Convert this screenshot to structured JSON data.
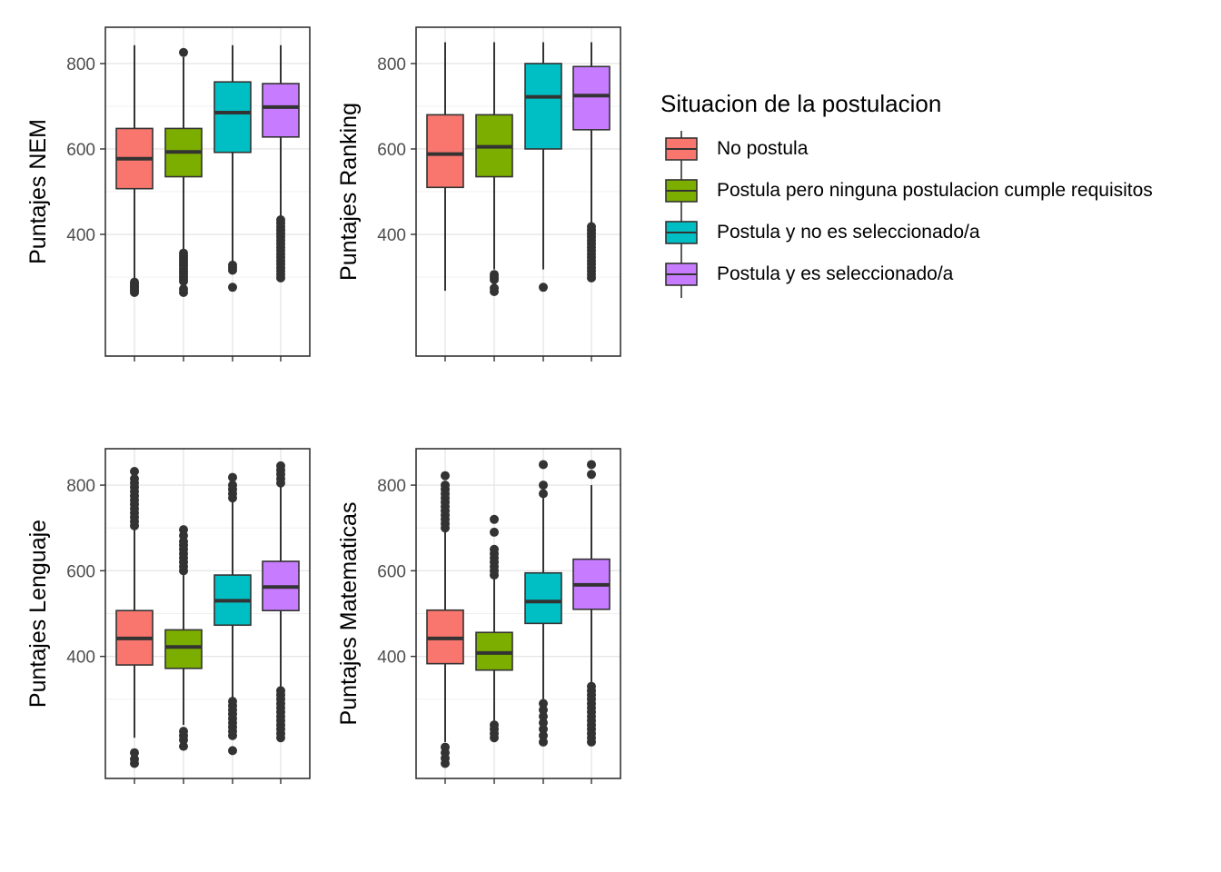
{
  "legend": {
    "title": "Situacion de la postulacion",
    "items": [
      {
        "label": "No postula",
        "color": "#F8766D"
      },
      {
        "label": "Postula pero ninguna postulacion cumple requisitos",
        "color": "#7CAE00"
      },
      {
        "label": "Postula y no es seleccionado/a",
        "color": "#00BFC4"
      },
      {
        "label": "Postula y es seleccionado/a",
        "color": "#C77CFF"
      }
    ]
  },
  "chart_data": [
    {
      "type": "boxplot",
      "ylabel": "Puntajes NEM",
      "yticks": [
        400,
        600,
        800
      ],
      "ylim": [
        115,
        885
      ],
      "categories": [
        "No postula",
        "Postula pero ninguna postulacion cumple requisitos",
        "Postula y no es seleccionado/a",
        "Postula y es seleccionado/a"
      ],
      "boxes": [
        {
          "whisker_low": 268,
          "q1": 507,
          "median": 577,
          "q3": 648,
          "whisker_high": 843,
          "outliers": [
            264,
            268,
            272,
            276,
            280,
            284,
            288
          ]
        },
        {
          "whisker_low": 358,
          "q1": 535,
          "median": 593,
          "q3": 648,
          "whisker_high": 815,
          "outliers": [
            264,
            272,
            290,
            296,
            302,
            308,
            314,
            320,
            326,
            332,
            338,
            344,
            350,
            356,
            826
          ]
        },
        {
          "whisker_low": 335,
          "q1": 592,
          "median": 685,
          "q3": 757,
          "whisker_high": 843,
          "outliers": [
            276,
            316,
            322,
            328
          ]
        },
        {
          "whisker_low": 440,
          "q1": 628,
          "median": 698,
          "q3": 753,
          "whisker_high": 843,
          "outliers": [
            298,
            306,
            314,
            322,
            330,
            338,
            346,
            354,
            362,
            370,
            378,
            386,
            394,
            402,
            410,
            418,
            426,
            434
          ]
        }
      ]
    },
    {
      "type": "boxplot",
      "ylabel": "Puntajes Ranking",
      "yticks": [
        400,
        600,
        800
      ],
      "ylim": [
        115,
        885
      ],
      "categories": [
        "No postula",
        "Postula pero ninguna postulacion cumple requisitos",
        "Postula y no es seleccionado/a",
        "Postula y es seleccionado/a"
      ],
      "boxes": [
        {
          "whisker_low": 268,
          "q1": 510,
          "median": 588,
          "q3": 680,
          "whisker_high": 850,
          "outliers": []
        },
        {
          "whisker_low": 318,
          "q1": 535,
          "median": 605,
          "q3": 680,
          "whisker_high": 850,
          "outliers": [
            266,
            274,
            294,
            300,
            306
          ]
        },
        {
          "whisker_low": 318,
          "q1": 600,
          "median": 722,
          "q3": 800,
          "whisker_high": 850,
          "outliers": [
            276
          ]
        },
        {
          "whisker_low": 425,
          "q1": 645,
          "median": 725,
          "q3": 793,
          "whisker_high": 850,
          "outliers": [
            298,
            306,
            314,
            322,
            330,
            338,
            346,
            354,
            362,
            370,
            378,
            386,
            394,
            402,
            410,
            418
          ]
        }
      ]
    },
    {
      "type": "boxplot",
      "ylabel": "Puntajes Lenguaje",
      "yticks": [
        400,
        600,
        800
      ],
      "ylim": [
        115,
        885
      ],
      "categories": [
        "No postula",
        "Postula pero ninguna postulacion cumple requisitos",
        "Postula y no es seleccionado/a",
        "Postula y es seleccionado/a"
      ],
      "boxes": [
        {
          "whisker_low": 210,
          "q1": 380,
          "median": 442,
          "q3": 507,
          "whisker_high": 700,
          "outliers": [
            150,
            160,
            175,
            705,
            715,
            725,
            735,
            745,
            755,
            765,
            775,
            785,
            795,
            805,
            815,
            832
          ]
        },
        {
          "whisker_low": 240,
          "q1": 372,
          "median": 422,
          "q3": 462,
          "whisker_high": 590,
          "outliers": [
            190,
            205,
            215,
            225,
            600,
            610,
            620,
            630,
            640,
            650,
            660,
            668,
            682,
            696
          ]
        },
        {
          "whisker_low": 300,
          "q1": 473,
          "median": 530,
          "q3": 590,
          "whisker_high": 765,
          "outliers": [
            180,
            215,
            225,
            235,
            245,
            255,
            265,
            275,
            285,
            295,
            770,
            780,
            790,
            800,
            818
          ]
        },
        {
          "whisker_low": 330,
          "q1": 507,
          "median": 562,
          "q3": 622,
          "whisker_high": 800,
          "outliers": [
            210,
            220,
            230,
            240,
            250,
            260,
            270,
            280,
            290,
            300,
            310,
            320,
            805,
            815,
            825,
            835,
            845
          ]
        }
      ]
    },
    {
      "type": "boxplot",
      "ylabel": "Puntajes Matematicas",
      "yticks": [
        400,
        600,
        800
      ],
      "ylim": [
        115,
        885
      ],
      "categories": [
        "No postula",
        "Postula pero ninguna postulacion cumple requisitos",
        "Postula y no es seleccionado/a",
        "Postula y es seleccionado/a"
      ],
      "boxes": [
        {
          "whisker_low": 200,
          "q1": 383,
          "median": 442,
          "q3": 508,
          "whisker_high": 695,
          "outliers": [
            150,
            162,
            175,
            188,
            700,
            710,
            720,
            730,
            740,
            750,
            760,
            770,
            780,
            790,
            800,
            822
          ]
        },
        {
          "whisker_low": 250,
          "q1": 368,
          "median": 408,
          "q3": 456,
          "whisker_high": 580,
          "outliers": [
            210,
            220,
            230,
            240,
            590,
            600,
            610,
            620,
            630,
            640,
            650,
            690,
            720
          ]
        },
        {
          "whisker_low": 300,
          "q1": 477,
          "median": 528,
          "q3": 595,
          "whisker_high": 770,
          "outliers": [
            200,
            215,
            230,
            245,
            260,
            275,
            290,
            780,
            800,
            848
          ]
        },
        {
          "whisker_low": 340,
          "q1": 510,
          "median": 567,
          "q3": 627,
          "whisker_high": 800,
          "outliers": [
            200,
            210,
            220,
            230,
            240,
            250,
            260,
            270,
            280,
            290,
            300,
            310,
            320,
            330,
            825,
            848
          ]
        }
      ]
    }
  ]
}
